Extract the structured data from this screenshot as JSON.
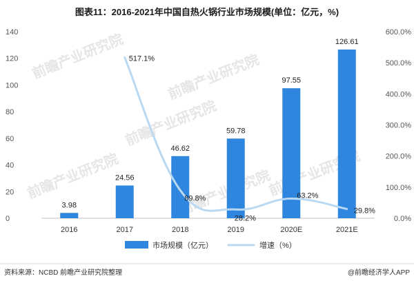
{
  "title": "图表11：2016-2021年中国自热火锅行业市场规模(单位：亿元，%)",
  "source_text": "资料来源：NCBD 前瞻产业研究院整理",
  "logo_text": "@前瞻经济学人APP",
  "watermark_text": "前瞻产业研究院",
  "colors": {
    "bar": "#2e86de",
    "line": "#b9d9f2",
    "axis": "#bfbfbf"
  },
  "chart_data": {
    "type": "bar",
    "title": "图表11：2016-2021年中国自热火锅行业市场规模(单位：亿元，%)",
    "categories": [
      "2016",
      "2017",
      "2018",
      "2019",
      "2020E",
      "2021E"
    ],
    "series": [
      {
        "name": "市场规模（亿元）",
        "type": "bar",
        "axis": "left",
        "values": [
          3.98,
          24.56,
          46.62,
          59.78,
          97.55,
          126.61
        ],
        "labels": [
          "3.98",
          "24.56",
          "46.62",
          "59.78",
          "97.55",
          "126.61"
        ]
      },
      {
        "name": "增速（%）",
        "type": "line",
        "axis": "right",
        "values": [
          null,
          517.1,
          89.8,
          28.2,
          63.2,
          29.8
        ],
        "labels": [
          "",
          "517.1%",
          "89.8%",
          "28.2%",
          "63.2%",
          "29.8%"
        ]
      }
    ],
    "y_left": {
      "min": 0,
      "max": 140,
      "ticks": [
        "0",
        "20",
        "40",
        "60",
        "80",
        "100",
        "120",
        "140"
      ]
    },
    "y_right": {
      "min": 0,
      "max": 600,
      "ticks": [
        "0.0%",
        "100.0%",
        "200.0%",
        "300.0%",
        "400.0%",
        "500.0%",
        "600.0%"
      ]
    },
    "grid": false,
    "legend": "bottom"
  }
}
